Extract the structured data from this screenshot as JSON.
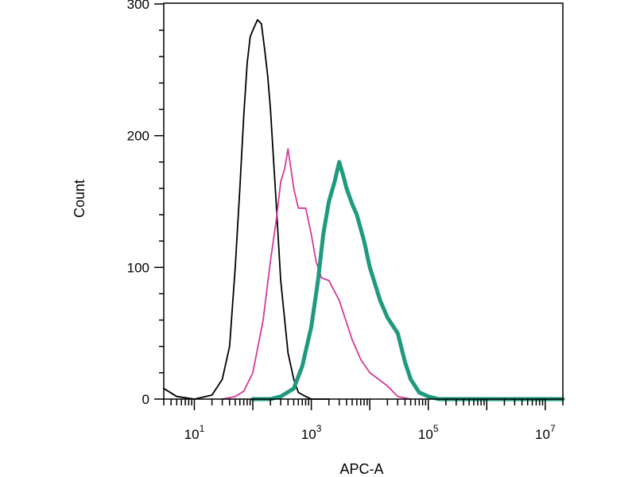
{
  "chart_data": {
    "type": "line",
    "xlabel": "APC-A",
    "ylabel": "Count",
    "x_scale": "log",
    "xlim": [
      3,
      20000000
    ],
    "ylim": [
      0,
      300
    ],
    "grid": false,
    "legend": "none",
    "y_ticks": [
      {
        "value": 0,
        "label": "0"
      },
      {
        "value": 100,
        "label": "100"
      },
      {
        "value": 200,
        "label": "200"
      },
      {
        "value": 300,
        "label": "300"
      }
    ],
    "x_ticks": [
      {
        "value": 10,
        "base": "10",
        "exp": "1"
      },
      {
        "value": 1000,
        "base": "10",
        "exp": "3"
      },
      {
        "value": 100000,
        "base": "10",
        "exp": "5"
      },
      {
        "value": 10000000,
        "base": "10",
        "exp": "7"
      }
    ],
    "series": [
      {
        "color": "#000000",
        "stroke_weight": "thin",
        "x": [
          3,
          5,
          10,
          20,
          30,
          40,
          50,
          60,
          70,
          80,
          90,
          100,
          120,
          140,
          160,
          180,
          200,
          250,
          300,
          400,
          500,
          600,
          800,
          1000,
          1500,
          2000
        ],
        "y": [
          8,
          2,
          0,
          3,
          15,
          40,
          100,
          160,
          215,
          255,
          275,
          280,
          288,
          285,
          265,
          245,
          220,
          150,
          90,
          35,
          15,
          5,
          2,
          0,
          0,
          0
        ]
      },
      {
        "color": "#d33a9a",
        "stroke_weight": "thin",
        "x": [
          30,
          50,
          70,
          100,
          150,
          200,
          250,
          300,
          350,
          400,
          500,
          600,
          800,
          1000,
          1200,
          1500,
          2000,
          3000,
          5000,
          7000,
          10000,
          20000,
          30000,
          50000
        ],
        "y": [
          0,
          2,
          6,
          20,
          60,
          105,
          135,
          165,
          175,
          190,
          160,
          145,
          145,
          125,
          105,
          92,
          90,
          75,
          45,
          30,
          20,
          10,
          2,
          0
        ]
      },
      {
        "color": "#1f9a7e",
        "stroke_weight": "thick",
        "x": [
          100,
          200,
          300,
          500,
          700,
          1000,
          1300,
          1600,
          2000,
          2500,
          3000,
          3500,
          4000,
          5000,
          6000,
          8000,
          10000,
          15000,
          20000,
          30000,
          40000,
          50000,
          70000,
          100000,
          150000,
          200000,
          1000000,
          20000000
        ],
        "y": [
          0,
          0,
          2,
          8,
          25,
          55,
          90,
          125,
          150,
          165,
          180,
          170,
          160,
          148,
          140,
          120,
          100,
          75,
          62,
          50,
          28,
          15,
          5,
          2,
          0,
          0,
          0,
          0
        ]
      }
    ]
  }
}
